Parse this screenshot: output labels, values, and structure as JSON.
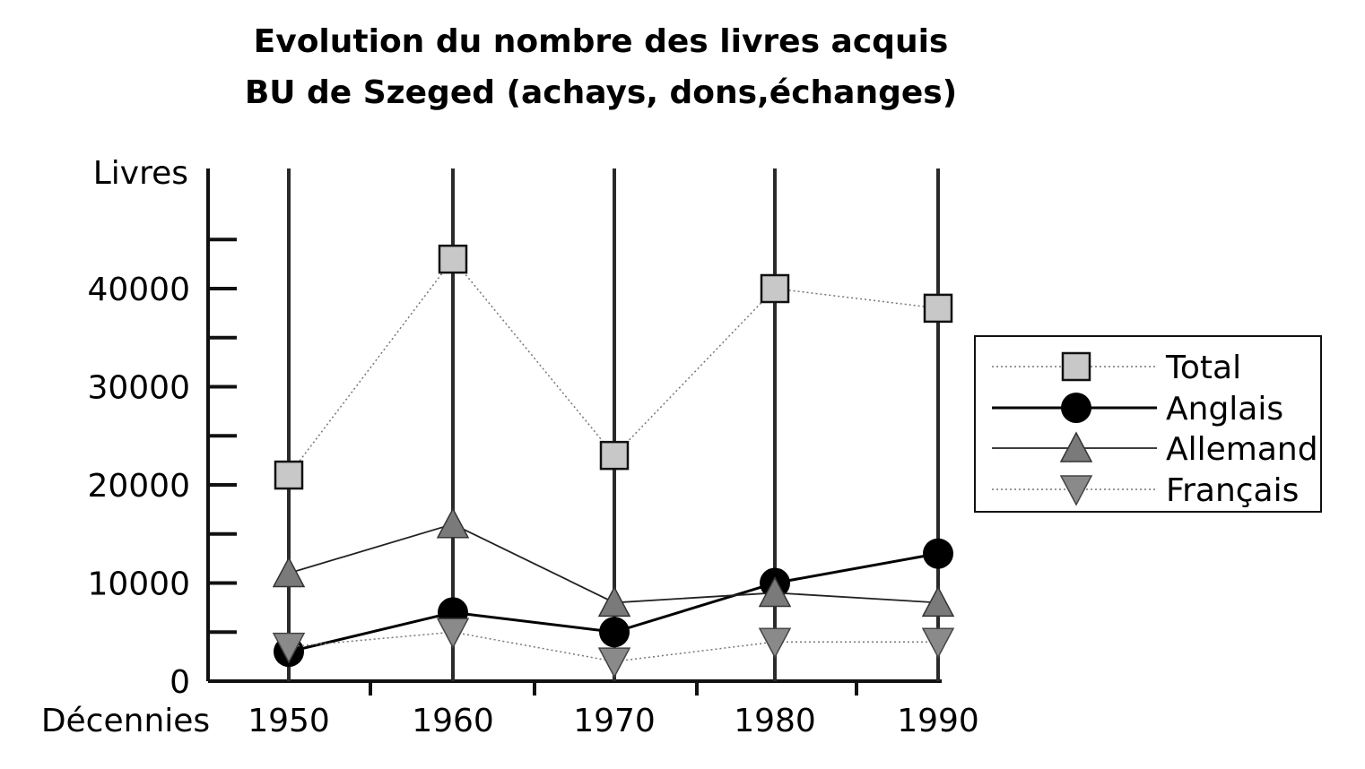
{
  "chart_data": {
    "type": "line",
    "title_lines": [
      "Evolution du nombre des livres acquis",
      "BU de Szeged (achays, dons,échanges)"
    ],
    "ylabel": "Livres",
    "xlabel": "Décennies",
    "categories": [
      "1950",
      "1960",
      "1970",
      "1980",
      "1990"
    ],
    "yticks": [
      "0",
      "10000",
      "20000",
      "30000",
      "40000"
    ],
    "ylim": [
      0,
      52000
    ],
    "grid": "vertical lines at each category",
    "legend_position": "right",
    "series": [
      {
        "name": "Total",
        "marker": "square",
        "line": "dotted",
        "color": "#c8c8c8",
        "values": [
          21000,
          43000,
          23000,
          40000,
          38000
        ]
      },
      {
        "name": "Anglais",
        "marker": "circle",
        "line": "solid",
        "color": "#000000",
        "values": [
          3000,
          7000,
          5000,
          10000,
          13000
        ]
      },
      {
        "name": "Allemand",
        "marker": "triangle-up",
        "line": "solid-thin",
        "color": "#7a7a7a",
        "values": [
          11000,
          16000,
          8000,
          9000,
          8000
        ]
      },
      {
        "name": "Français",
        "marker": "triangle-down",
        "line": "dotted",
        "color": "#8a8a8a",
        "values": [
          3500,
          5000,
          2000,
          4000,
          4000
        ]
      }
    ]
  }
}
